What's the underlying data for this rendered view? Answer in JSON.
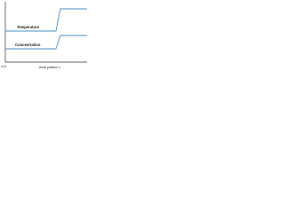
{
  "curves": [
    {
      "label": "Temperature"
    },
    {
      "label": "Concentration"
    }
  ],
  "axis": {
    "x_label": "Axial position z",
    "origin_label": "z=0"
  }
}
